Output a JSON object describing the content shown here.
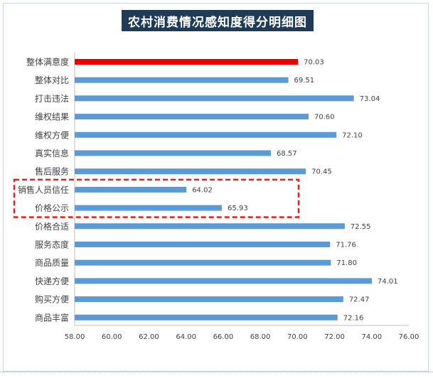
{
  "chart_data": {
    "type": "bar",
    "orientation": "horizontal",
    "title": "农村消费情况感知度得分明细图",
    "categories": [
      "整体满意度",
      "整体对比",
      "打击违法",
      "维权结果",
      "维权方便",
      "真实信息",
      "售后服务",
      "销售人员信任",
      "价格公示",
      "价格合适",
      "服务态度",
      "商品质量",
      "快递方便",
      "购买方便",
      "商品丰富"
    ],
    "values": [
      70.03,
      69.51,
      73.04,
      70.6,
      72.1,
      68.57,
      70.45,
      64.02,
      65.93,
      72.55,
      71.76,
      71.8,
      74.01,
      72.47,
      72.16
    ],
    "value_labels": [
      "70.03",
      "69.51",
      "73.04",
      "70.60",
      "72.10",
      "68.57",
      "70.45",
      "64.02",
      "65.93",
      "72.55",
      "71.76",
      "71.80",
      "74.01",
      "72.47",
      "72.16"
    ],
    "highlight_index": 0,
    "xlim": [
      58,
      76
    ],
    "xticks": [
      "58.00",
      "60.00",
      "62.00",
      "64.00",
      "66.00",
      "68.00",
      "70.00",
      "72.00",
      "74.00",
      "76.00"
    ],
    "grid": false,
    "legend": "none",
    "annotation": "dashed red box around 销售人员信任 and 价格公示"
  },
  "colors": {
    "bar": "#5b9bd5",
    "highlight": "#ee0000",
    "annotation_box": "#e2231a",
    "title_bg": "#1f3b57",
    "title_text": "#ffffff",
    "text": "#404040",
    "axis": "#bfbfbf"
  }
}
